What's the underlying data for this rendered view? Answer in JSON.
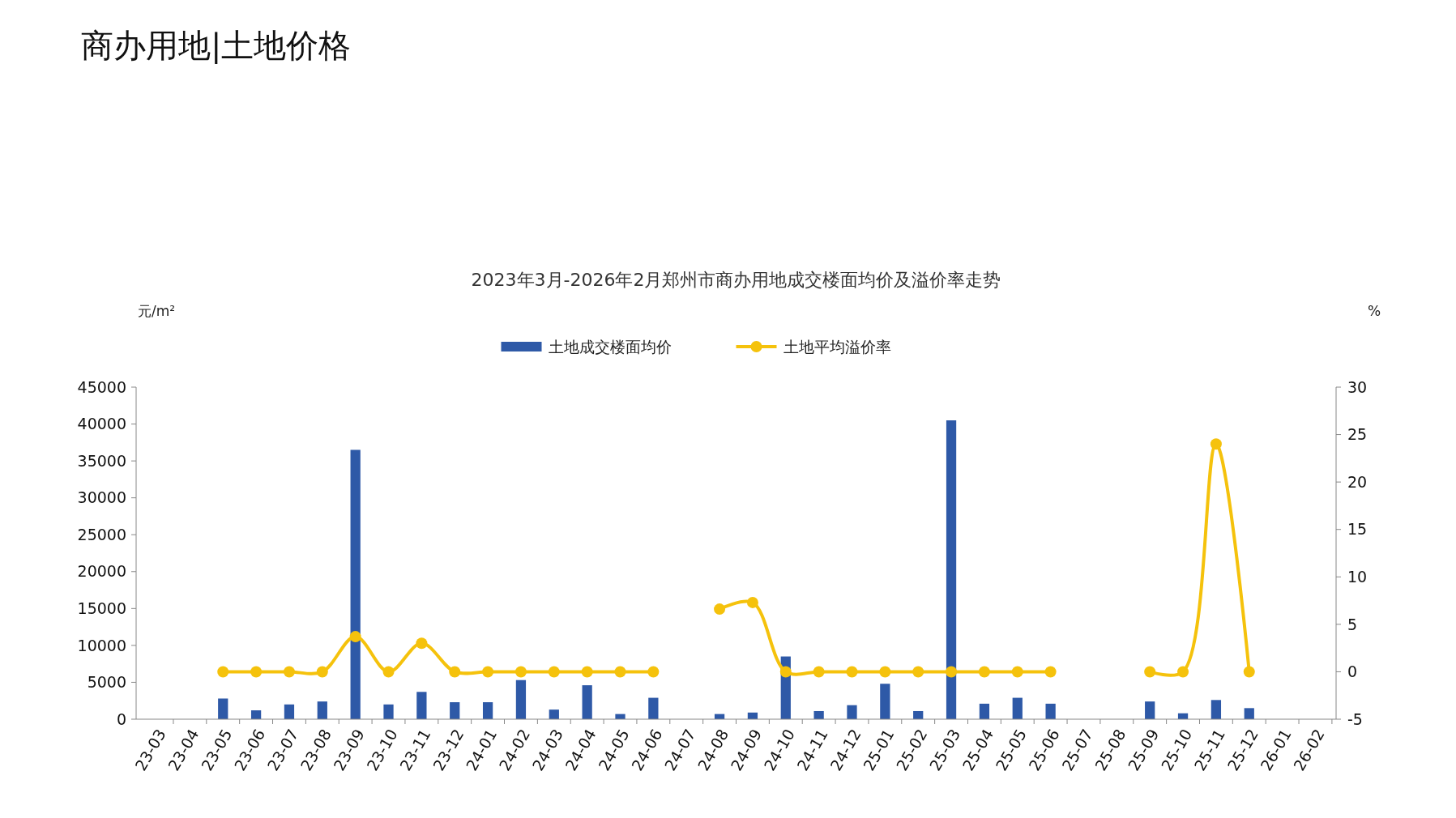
{
  "chart_data": {
    "type": "bar",
    "title": "商办用地|土地价格",
    "subtitle": "2023年3月-2026年2月郑州市商办用地成交楼面均价及溢价率走势",
    "ylabel": "元/m²",
    "y2label": "%",
    "categories": [
      "23-03",
      "23-04",
      "23-05",
      "23-06",
      "23-07",
      "23-08",
      "23-09",
      "23-10",
      "23-11",
      "23-12",
      "24-01",
      "24-02",
      "24-03",
      "24-04",
      "24-05",
      "24-06",
      "24-07",
      "24-08",
      "24-09",
      "24-10",
      "24-11",
      "24-12",
      "25-01",
      "25-02",
      "25-03",
      "25-04",
      "25-05",
      "25-06",
      "25-07",
      "25-08",
      "25-09",
      "25-10",
      "25-11",
      "25-12",
      "26-01",
      "26-02"
    ],
    "series": [
      {
        "name": "土地成交楼面均价",
        "color": "#2e59a7",
        "values": [
          null,
          null,
          2800,
          1200,
          2000,
          2400,
          36500,
          2000,
          3700,
          2300,
          2300,
          5300,
          1300,
          4600,
          700,
          2900,
          null,
          700,
          900,
          8500,
          1100,
          1900,
          4800,
          1100,
          40500,
          2100,
          2900,
          2100,
          null,
          null,
          2400,
          800,
          2600,
          1500,
          null,
          null
        ]
      },
      {
        "name": "土地平均溢价率",
        "type": "line",
        "axis": "y2",
        "color": "#f5c20c",
        "marker": "circle",
        "values": [
          null,
          null,
          0,
          0,
          0,
          0,
          3.7,
          0,
          3.0,
          0,
          0,
          0,
          0,
          0,
          0,
          0,
          null,
          6.6,
          7.3,
          0,
          0,
          0,
          0,
          0,
          0,
          0,
          0,
          0,
          null,
          null,
          0,
          0,
          24.0,
          0,
          null,
          null
        ]
      }
    ],
    "ylim": [
      0,
      45000
    ],
    "yticks": [
      0,
      5000,
      10000,
      15000,
      20000,
      25000,
      30000,
      35000,
      40000,
      45000
    ],
    "y2lim": [
      -5,
      30
    ],
    "y2ticks": [
      -5,
      0,
      5,
      10,
      15,
      20,
      25,
      30
    ],
    "legend": "top",
    "grid": false
  }
}
